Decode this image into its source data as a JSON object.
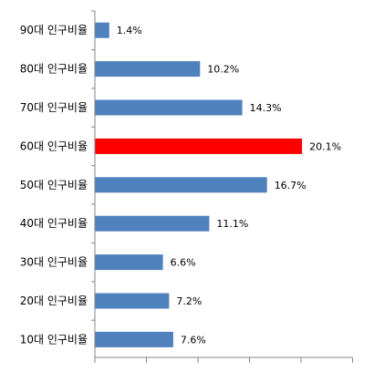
{
  "chart_data": {
    "type": "bar",
    "orientation": "horizontal",
    "categories": [
      "10대 인구비율",
      "20대 인구비율",
      "30대 인구비율",
      "40대 인구비율",
      "50대 인구비율",
      "60대 인구비율",
      "70대 인구비율",
      "80대 인구비율",
      "90대 인구비율"
    ],
    "values": [
      7.6,
      7.2,
      6.6,
      11.1,
      16.7,
      20.1,
      14.3,
      10.2,
      1.4
    ],
    "value_labels": [
      "7.6%",
      "7.2%",
      "6.6%",
      "11.1%",
      "16.7%",
      "20.1%",
      "14.3%",
      "10.2%",
      "1.4%"
    ],
    "xlim": [
      0,
      25
    ],
    "xticks": [
      0,
      5,
      10,
      15,
      20,
      25
    ],
    "grid": false,
    "legend": "none",
    "colors": {
      "bar": "#4F81BD",
      "highlight": "#FF0000",
      "axis": "#868686",
      "text": "#000000"
    },
    "highlight_category": "60대 인구비율"
  }
}
